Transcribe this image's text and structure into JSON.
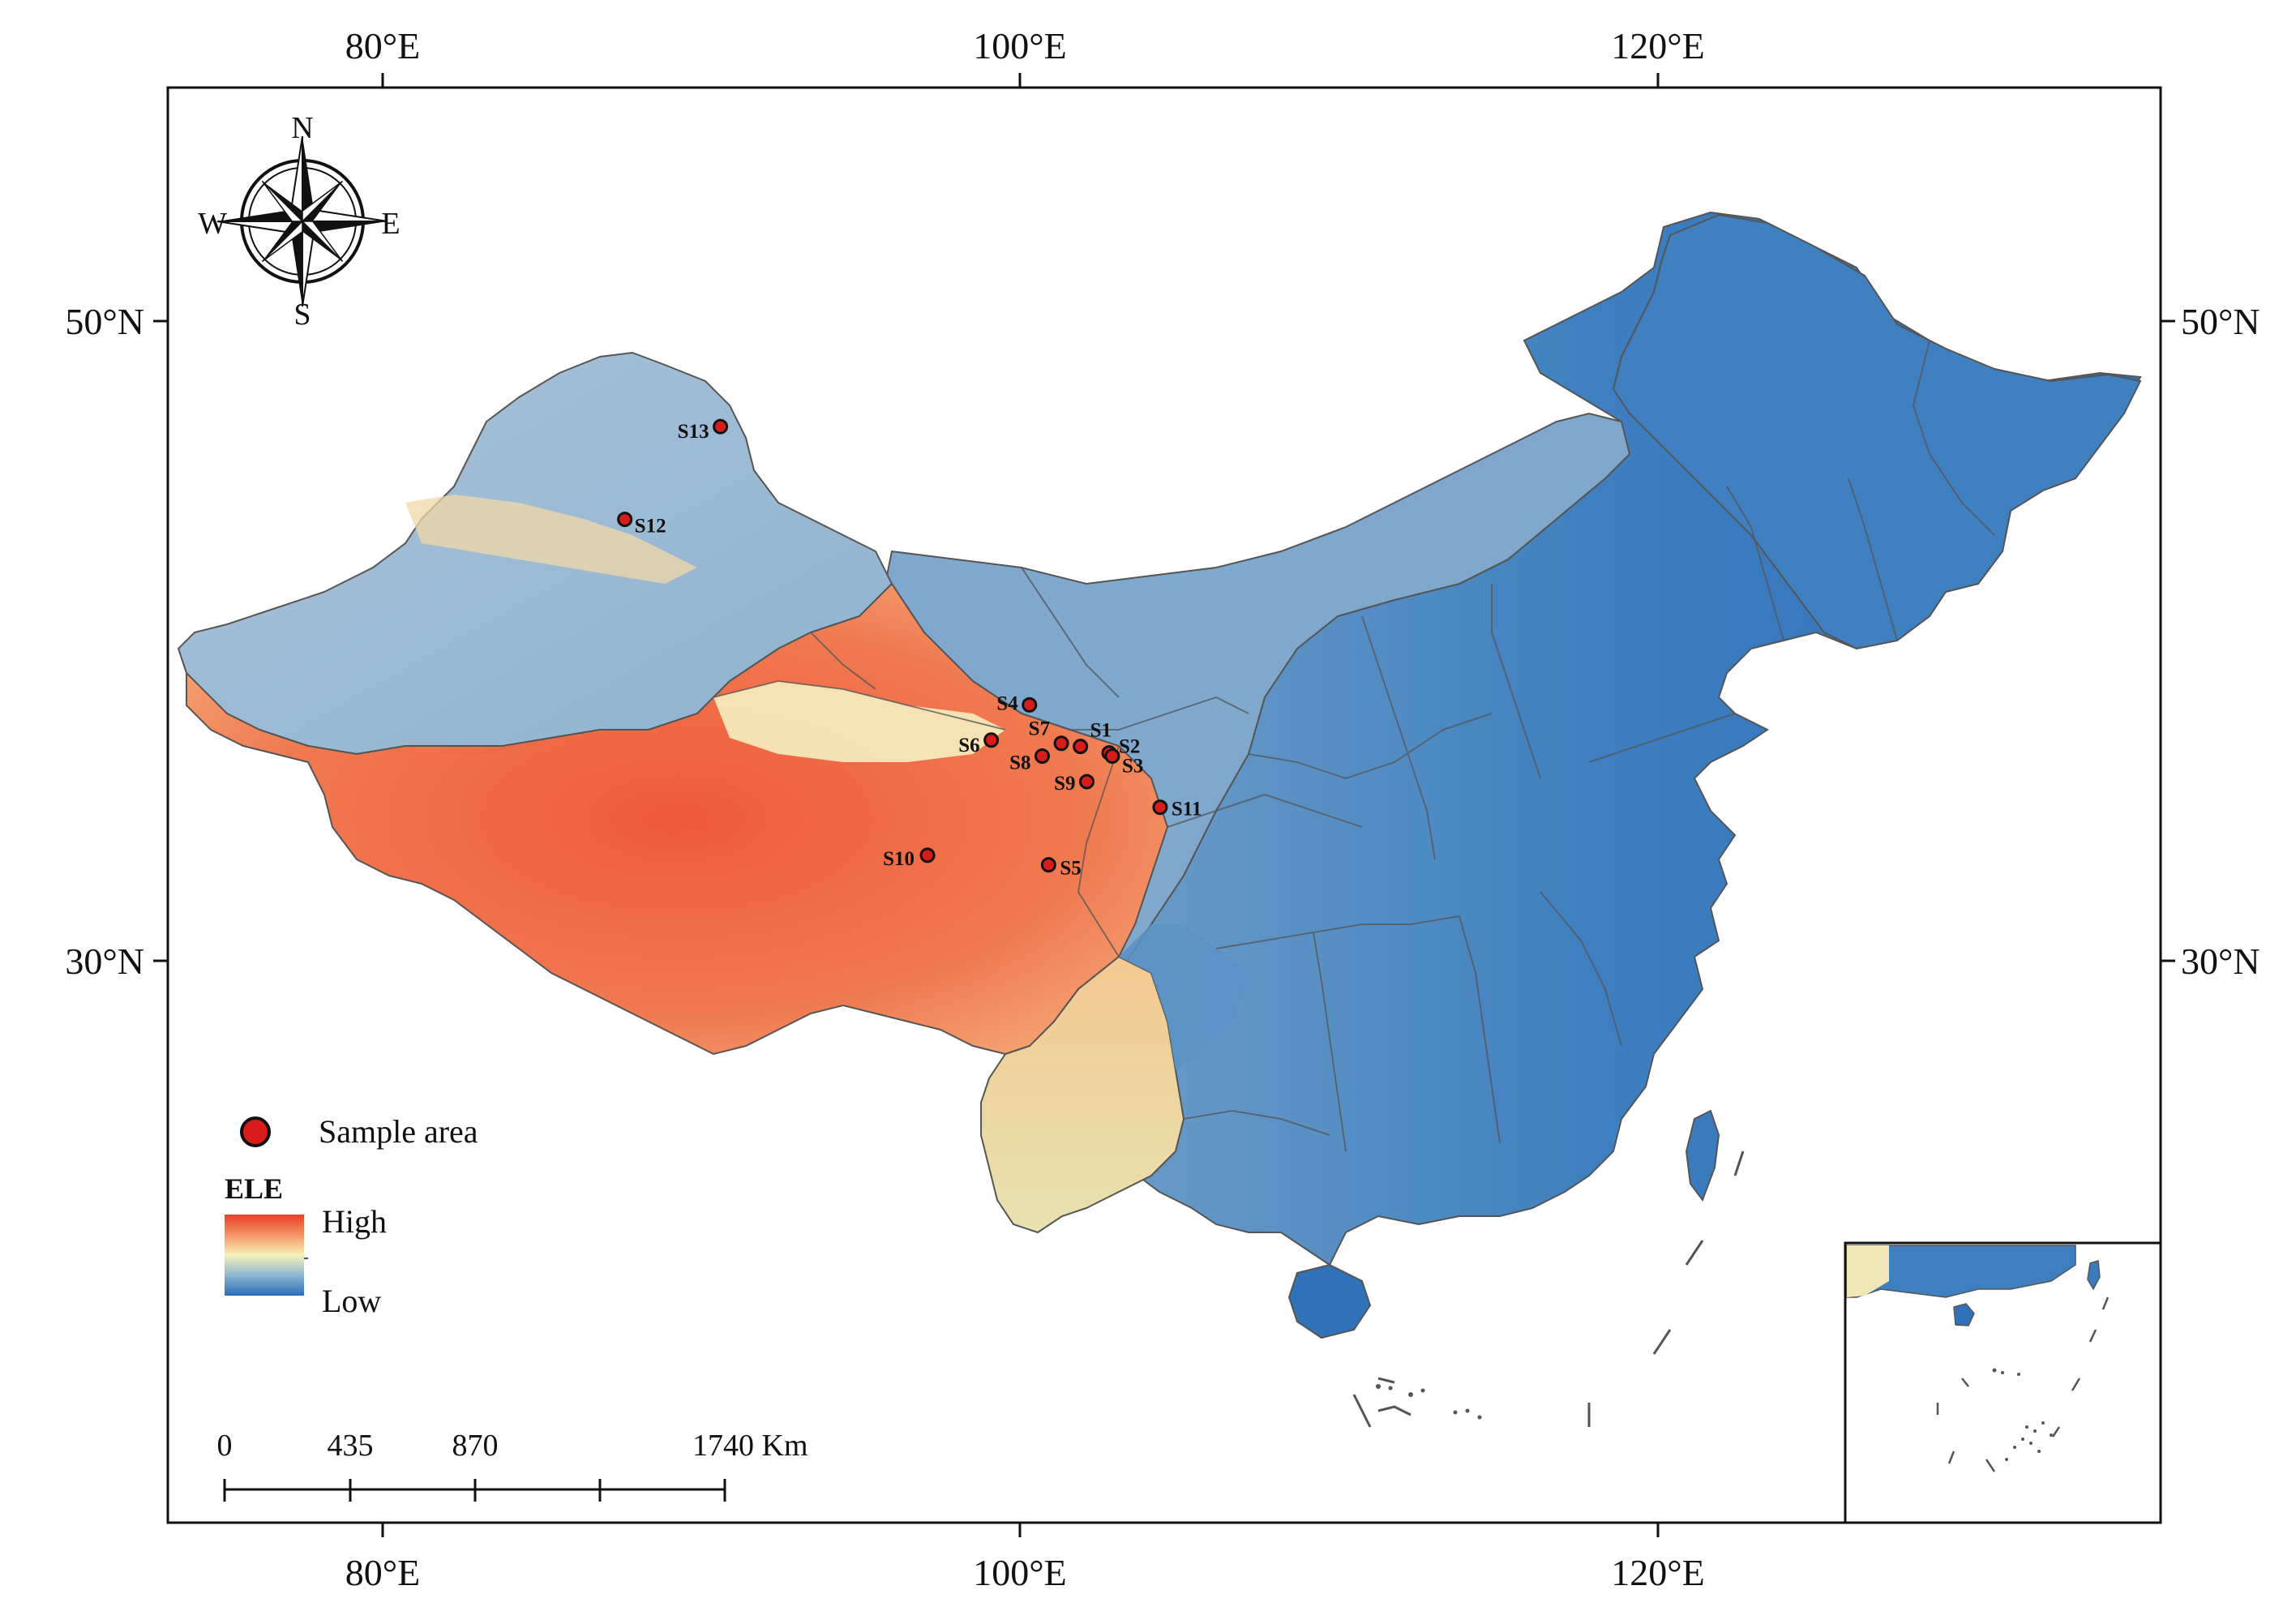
{
  "longitude_labels": [
    "80°E",
    "100°E",
    "120°E"
  ],
  "latitude_labels": [
    "50°N",
    "30°N"
  ],
  "compass": {
    "north": "N",
    "south": "S",
    "east": "E",
    "west": "W"
  },
  "legend": {
    "marker_label": "Sample area",
    "elevation_title": "ELE",
    "elevation_high": "High",
    "elevation_low": "Low",
    "colors": {
      "high": "#e8412a",
      "mid": "#f7f1b8",
      "low": "#2a6db5",
      "marker": "#d81b1b"
    }
  },
  "scale_bar": {
    "labels": [
      "0",
      "435",
      "870",
      "1740 Km"
    ]
  },
  "sample_sites": [
    {
      "id": "S1",
      "lon": 101.9,
      "lat": 36.7
    },
    {
      "id": "S2",
      "lon": 102.8,
      "lat": 36.5
    },
    {
      "id": "S3",
      "lon": 102.9,
      "lat": 36.4
    },
    {
      "id": "S4",
      "lon": 100.3,
      "lat": 38.0
    },
    {
      "id": "S5",
      "lon": 100.9,
      "lat": 33.0
    },
    {
      "id": "S6",
      "lon": 99.1,
      "lat": 36.9
    },
    {
      "id": "S7",
      "lon": 101.3,
      "lat": 36.8
    },
    {
      "id": "S8",
      "lon": 100.7,
      "lat": 36.4
    },
    {
      "id": "S9",
      "lon": 102.1,
      "lat": 35.6
    },
    {
      "id": "S10",
      "lon": 97.1,
      "lat": 33.3
    },
    {
      "id": "S11",
      "lon": 104.4,
      "lat": 34.8
    },
    {
      "id": "S12",
      "lon": 87.6,
      "lat": 43.8
    },
    {
      "id": "S13",
      "lon": 90.6,
      "lat": 46.7
    }
  ]
}
